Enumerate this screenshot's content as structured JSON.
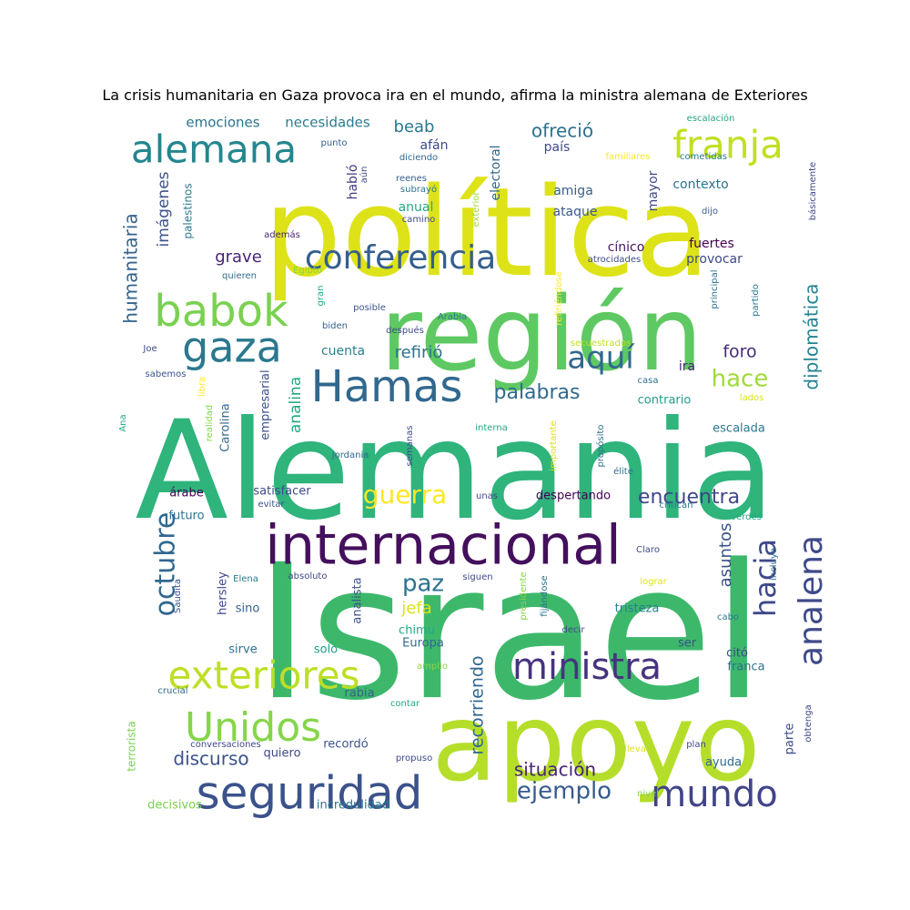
{
  "chart_data": {
    "type": "wordcloud",
    "title": "La crisis humanitaria en Gaza provoca ira en el mundo, afirma la ministra alemana de Exteriores",
    "colormap": "viridis",
    "background": "#ffffff",
    "words": [
      {
        "text": "Israel",
        "weight": 1.0,
        "color": "#3db86b"
      },
      {
        "text": "Alemania",
        "weight": 0.98,
        "color": "#2fb47c"
      },
      {
        "text": "política",
        "weight": 0.9,
        "color": "#dde318"
      },
      {
        "text": "apoyo",
        "weight": 0.88,
        "color": "#b5de2b"
      },
      {
        "text": "región",
        "weight": 0.85,
        "color": "#5ec962"
      },
      {
        "text": "internacional",
        "weight": 0.6,
        "color": "#440f5c"
      },
      {
        "text": "Hamas",
        "weight": 0.52,
        "color": "#31688e"
      },
      {
        "text": "seguridad",
        "weight": 0.5,
        "color": "#3b528b"
      },
      {
        "text": "babok",
        "weight": 0.48,
        "color": "#7ad151"
      },
      {
        "text": "gaza",
        "weight": 0.46,
        "color": "#2a788e"
      },
      {
        "text": "Unidos",
        "weight": 0.44,
        "color": "#86d549"
      },
      {
        "text": "alemana",
        "weight": 0.42,
        "color": "#24868e"
      },
      {
        "text": "exteriores",
        "weight": 0.42,
        "color": "#bddf26"
      },
      {
        "text": "franja",
        "weight": 0.4,
        "color": "#c2df23"
      },
      {
        "text": "ministra",
        "weight": 0.4,
        "color": "#46337e"
      },
      {
        "text": "mundo",
        "weight": 0.4,
        "color": "#414487"
      },
      {
        "text": "conferencia",
        "weight": 0.36,
        "color": "#355f8d"
      },
      {
        "text": "analena",
        "weight": 0.36,
        "color": "#3f4a8a"
      },
      {
        "text": "aquí",
        "weight": 0.32,
        "color": "#31688e"
      },
      {
        "text": "hacia",
        "weight": 0.32,
        "color": "#3e4989"
      },
      {
        "text": "octubre",
        "weight": 0.3,
        "color": "#31688e"
      },
      {
        "text": "guerra",
        "weight": 0.28,
        "color": "#fde725"
      },
      {
        "text": "hace",
        "weight": 0.26,
        "color": "#a0da39"
      },
      {
        "text": "paz",
        "weight": 0.26,
        "color": "#2c728e"
      },
      {
        "text": "ejemplo",
        "weight": 0.26,
        "color": "#375b8d"
      },
      {
        "text": "encuentra",
        "weight": 0.22,
        "color": "#404688"
      },
      {
        "text": "palabras",
        "weight": 0.22,
        "color": "#306a8e"
      },
      {
        "text": "diplomática",
        "weight": 0.2,
        "color": "#25838e"
      },
      {
        "text": "ofreció",
        "weight": 0.2,
        "color": "#2d718e"
      },
      {
        "text": "situación",
        "weight": 0.2,
        "color": "#482475"
      },
      {
        "text": "discurso",
        "weight": 0.2,
        "color": "#3b528b"
      },
      {
        "text": "humanitaria",
        "weight": 0.2,
        "color": "#33638d"
      },
      {
        "text": "foro",
        "weight": 0.19,
        "color": "#472c7a"
      },
      {
        "text": "recorriendo",
        "weight": 0.19,
        "color": "#31688e"
      },
      {
        "text": "grave",
        "weight": 0.18,
        "color": "#482475"
      },
      {
        "text": "refirió",
        "weight": 0.18,
        "color": "#2c728e"
      },
      {
        "text": "jefa",
        "weight": 0.18,
        "color": "#dde318"
      },
      {
        "text": "beab",
        "weight": 0.18,
        "color": "#2a788e"
      },
      {
        "text": "asuntos",
        "weight": 0.18,
        "color": "#3b528b"
      },
      {
        "text": "analina",
        "weight": 0.17,
        "color": "#22a884"
      },
      {
        "text": "imágenes",
        "weight": 0.17,
        "color": "#3b528b"
      },
      {
        "text": "emociones",
        "weight": 0.15,
        "color": "#2c728e"
      },
      {
        "text": "necesidades",
        "weight": 0.15,
        "color": "#287c8e"
      },
      {
        "text": "amiga",
        "weight": 0.14,
        "color": "#355f8d"
      },
      {
        "text": "ataque",
        "weight": 0.14,
        "color": "#38598c"
      },
      {
        "text": "contexto",
        "weight": 0.14,
        "color": "#2c728e"
      },
      {
        "text": "país",
        "weight": 0.14,
        "color": "#3e4989"
      },
      {
        "text": "afán",
        "weight": 0.14,
        "color": "#3e4989"
      },
      {
        "text": "anual",
        "weight": 0.14,
        "color": "#22a884"
      },
      {
        "text": "electoral",
        "weight": 0.14,
        "color": "#31688e"
      },
      {
        "text": "mayor",
        "weight": 0.14,
        "color": "#3e4989"
      },
      {
        "text": "habló",
        "weight": 0.14,
        "color": "#453781"
      },
      {
        "text": "cínico",
        "weight": 0.14,
        "color": "#471365"
      },
      {
        "text": "fuertes",
        "weight": 0.14,
        "color": "#440154"
      },
      {
        "text": "provocar",
        "weight": 0.14,
        "color": "#3e4989"
      },
      {
        "text": "cuenta",
        "weight": 0.14,
        "color": "#27808e"
      },
      {
        "text": "ira",
        "weight": 0.14,
        "color": "#482475"
      },
      {
        "text": "contrario",
        "weight": 0.13,
        "color": "#1fa088"
      },
      {
        "text": "escalada",
        "weight": 0.13,
        "color": "#2a788e"
      },
      {
        "text": "empresarial",
        "weight": 0.13,
        "color": "#3b528b"
      },
      {
        "text": "Carolina",
        "weight": 0.13,
        "color": "#31688e"
      },
      {
        "text": "satisfacer",
        "weight": 0.13,
        "color": "#3e4989"
      },
      {
        "text": "despertando",
        "weight": 0.13,
        "color": "#440154"
      },
      {
        "text": "árabe",
        "weight": 0.13,
        "color": "#440154"
      },
      {
        "text": "futuro",
        "weight": 0.13,
        "color": "#2c728e"
      },
      {
        "text": "sino",
        "weight": 0.13,
        "color": "#355f8d"
      },
      {
        "text": "hersley",
        "weight": 0.13,
        "color": "#3e4989"
      },
      {
        "text": "analista",
        "weight": 0.13,
        "color": "#3b528b"
      },
      {
        "text": "chimu",
        "weight": 0.13,
        "color": "#22a884"
      },
      {
        "text": "Europa",
        "weight": 0.13,
        "color": "#31688e"
      },
      {
        "text": "tristeza",
        "weight": 0.13,
        "color": "#27808e"
      },
      {
        "text": "sirve",
        "weight": 0.13,
        "color": "#2c728e"
      },
      {
        "text": "solo",
        "weight": 0.13,
        "color": "#1fa088"
      },
      {
        "text": "ser",
        "weight": 0.13,
        "color": "#3b528b"
      },
      {
        "text": "citó",
        "weight": 0.13,
        "color": "#3e4989"
      },
      {
        "text": "franca",
        "weight": 0.13,
        "color": "#2c728e"
      },
      {
        "text": "rabia",
        "weight": 0.13,
        "color": "#355f8d"
      },
      {
        "text": "recordó",
        "weight": 0.13,
        "color": "#3b528b"
      },
      {
        "text": "quiero",
        "weight": 0.13,
        "color": "#3e4989"
      },
      {
        "text": "ayuda",
        "weight": 0.13,
        "color": "#31688e"
      },
      {
        "text": "parte",
        "weight": 0.13,
        "color": "#3e4989"
      },
      {
        "text": "incredulidad",
        "weight": 0.13,
        "color": "#2a788e"
      },
      {
        "text": "decisivos",
        "weight": 0.13,
        "color": "#7ad151"
      },
      {
        "text": "terrorista",
        "weight": 0.12,
        "color": "#7ad151"
      },
      {
        "text": "palestinos",
        "weight": 0.12,
        "color": "#2a788e"
      },
      {
        "text": "escalación",
        "weight": 0.1,
        "color": "#22a884"
      },
      {
        "text": "familiares",
        "weight": 0.1,
        "color": "#fde725"
      },
      {
        "text": "cometidas",
        "weight": 0.1,
        "color": "#2a788e"
      },
      {
        "text": "punto",
        "weight": 0.1,
        "color": "#355f8d"
      },
      {
        "text": "diciendo",
        "weight": 0.1,
        "color": "#31688e"
      },
      {
        "text": "reenes",
        "weight": 0.1,
        "color": "#355f8d"
      },
      {
        "text": "subrayó",
        "weight": 0.1,
        "color": "#2c728e"
      },
      {
        "text": "camino",
        "weight": 0.1,
        "color": "#3e4989"
      },
      {
        "text": "exterior",
        "weight": 0.1,
        "color": "#a0da39"
      },
      {
        "text": "aún",
        "weight": 0.1,
        "color": "#3e4989"
      },
      {
        "text": "dijo",
        "weight": 0.1,
        "color": "#355f8d"
      },
      {
        "text": "básicamente",
        "weight": 0.1,
        "color": "#3e4989"
      },
      {
        "text": "además",
        "weight": 0.1,
        "color": "#482475"
      },
      {
        "text": "quieren",
        "weight": 0.1,
        "color": "#31688e"
      },
      {
        "text": "Egipto",
        "weight": 0.1,
        "color": "#86d549"
      },
      {
        "text": "gran",
        "weight": 0.1,
        "color": "#22a884"
      },
      {
        "text": "posible",
        "weight": 0.1,
        "color": "#3b528b"
      },
      {
        "text": "biden",
        "weight": 0.1,
        "color": "#355f8d"
      },
      {
        "text": "después",
        "weight": 0.1,
        "color": "#3e4989"
      },
      {
        "text": "Arabia",
        "weight": 0.1,
        "color": "#2a788e"
      },
      {
        "text": "refiriéndose",
        "weight": 0.1,
        "color": "#fde725"
      },
      {
        "text": "atrocidades",
        "weight": 0.1,
        "color": "#3e4989"
      },
      {
        "text": "principal",
        "weight": 0.1,
        "color": "#2c728e"
      },
      {
        "text": "partido",
        "weight": 0.1,
        "color": "#2a788e"
      },
      {
        "text": "Joe",
        "weight": 0.1,
        "color": "#3e4989"
      },
      {
        "text": "secuestrados",
        "weight": 0.1,
        "color": "#c2df23"
      },
      {
        "text": "sabemos",
        "weight": 0.1,
        "color": "#3b528b"
      },
      {
        "text": "libra",
        "weight": 0.1,
        "color": "#fde725"
      },
      {
        "text": "casa",
        "weight": 0.1,
        "color": "#2c728e"
      },
      {
        "text": "lados",
        "weight": 0.1,
        "color": "#dde318"
      },
      {
        "text": "Ana",
        "weight": 0.1,
        "color": "#22a884"
      },
      {
        "text": "realidad",
        "weight": 0.1,
        "color": "#86d549"
      },
      {
        "text": "semanas",
        "weight": 0.1,
        "color": "#3e4989"
      },
      {
        "text": "Jordania",
        "weight": 0.1,
        "color": "#31688e"
      },
      {
        "text": "interna",
        "weight": 0.1,
        "color": "#22a884"
      },
      {
        "text": "importante",
        "weight": 0.1,
        "color": "#dde318"
      },
      {
        "text": "propósito",
        "weight": 0.1,
        "color": "#2c728e"
      },
      {
        "text": "élite",
        "weight": 0.1,
        "color": "#2c728e"
      },
      {
        "text": "evitar",
        "weight": 0.1,
        "color": "#3b528b"
      },
      {
        "text": "unas",
        "weight": 0.1,
        "color": "#3e4989"
      },
      {
        "text": "critican",
        "weight": 0.1,
        "color": "#2a788e"
      },
      {
        "text": "verdes",
        "weight": 0.1,
        "color": "#22a884"
      },
      {
        "text": "incluye",
        "weight": 0.1,
        "color": "#2c728e"
      },
      {
        "text": "Claro",
        "weight": 0.1,
        "color": "#3e4989"
      },
      {
        "text": "Elena",
        "weight": 0.1,
        "color": "#2a788e"
      },
      {
        "text": "Saudita",
        "weight": 0.1,
        "color": "#3b528b"
      },
      {
        "text": "absoluto",
        "weight": 0.1,
        "color": "#3e4989"
      },
      {
        "text": "siguen",
        "weight": 0.1,
        "color": "#3e4989"
      },
      {
        "text": "presidente",
        "weight": 0.1,
        "color": "#86d549"
      },
      {
        "text": "fijándose",
        "weight": 0.1,
        "color": "#2c728e"
      },
      {
        "text": "lograr",
        "weight": 0.1,
        "color": "#dde318"
      },
      {
        "text": "cabo",
        "weight": 0.1,
        "color": "#2a788e"
      },
      {
        "text": "decir",
        "weight": 0.1,
        "color": "#3e4989"
      },
      {
        "text": "amplio",
        "weight": 0.1,
        "color": "#86d549"
      },
      {
        "text": "crucial",
        "weight": 0.1,
        "color": "#31688e"
      },
      {
        "text": "contar",
        "weight": 0.1,
        "color": "#22a884"
      },
      {
        "text": "obtenga",
        "weight": 0.1,
        "color": "#3e4989"
      },
      {
        "text": "conversaciones",
        "weight": 0.1,
        "color": "#3e4989"
      },
      {
        "text": "propuso",
        "weight": 0.1,
        "color": "#3e4989"
      },
      {
        "text": "lleva",
        "weight": 0.1,
        "color": "#dde318"
      },
      {
        "text": "plan",
        "weight": 0.1,
        "color": "#3e4989"
      },
      {
        "text": "nivel",
        "weight": 0.1,
        "color": "#86d549"
      }
    ]
  }
}
